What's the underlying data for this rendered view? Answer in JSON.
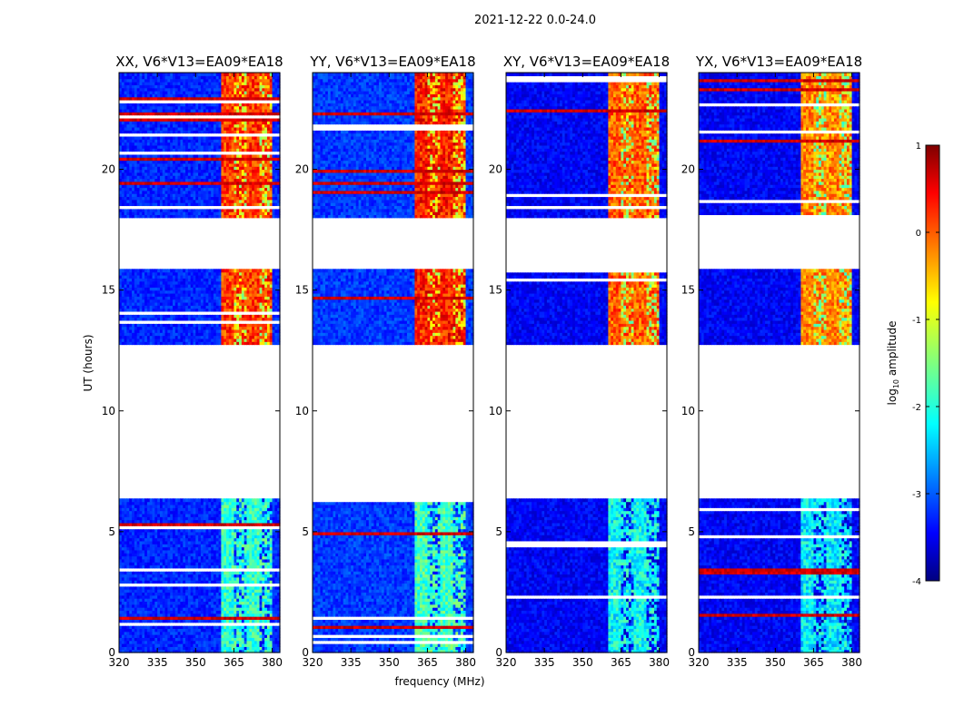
{
  "suptitle": "2021-12-22 0.0-24.0",
  "chart_data": {
    "type": "heatmap",
    "title": "2021-12-22 0.0-24.0",
    "xlabel": "frequency (MHz)",
    "ylabel": "UT (hours)",
    "xlim": [
      320,
      383
    ],
    "ylim": [
      0,
      24
    ],
    "xticks": [
      320,
      335,
      350,
      365,
      380
    ],
    "yticks": [
      0,
      5,
      10,
      15,
      20
    ],
    "colorbar": {
      "label": "log10 amplitude",
      "label_main": "log",
      "label_sub": "10",
      "label_rest": " amplitude",
      "range": [
        -4,
        1
      ],
      "ticks": [
        1,
        0,
        -1,
        -2,
        -3,
        -4
      ],
      "colormap": "jet"
    },
    "data_ranges_hours": [
      [
        0,
        6.35
      ],
      [
        12.7,
        15.9
      ],
      [
        18.0,
        24.0
      ]
    ],
    "flagged_ranges_hours": [
      [
        6.35,
        12.7
      ],
      [
        15.9,
        18.0
      ]
    ],
    "rfi_band_mhz": [
      360,
      380
    ],
    "panels": [
      {
        "title": "XX, V6*V13=EA09*EA18",
        "pol": "XX",
        "band_level_high": 0.1,
        "band_level_low": -1.9,
        "background": -3.2
      },
      {
        "title": "YY, V6*V13=EA09*EA18",
        "pol": "YY",
        "band_level_high": 0.25,
        "band_level_low": -1.8,
        "background": -3.1
      },
      {
        "title": "XY, V6*V13=EA09*EA18",
        "pol": "XY",
        "band_level_high": -0.1,
        "band_level_low": -2.1,
        "background": -3.4
      },
      {
        "title": "YX, V6*V13=EA09*EA18",
        "pol": "YX",
        "band_level_high": -0.3,
        "band_level_low": -2.2,
        "background": -3.4
      }
    ]
  }
}
